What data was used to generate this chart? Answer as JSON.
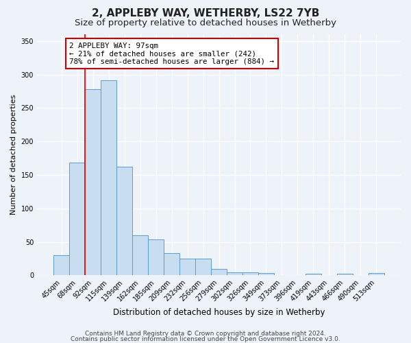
{
  "title": "2, APPLEBY WAY, WETHERBY, LS22 7YB",
  "subtitle": "Size of property relative to detached houses in Wetherby",
  "xlabel": "Distribution of detached houses by size in Wetherby",
  "ylabel": "Number of detached properties",
  "bar_labels": [
    "45sqm",
    "68sqm",
    "92sqm",
    "115sqm",
    "139sqm",
    "162sqm",
    "185sqm",
    "209sqm",
    "232sqm",
    "256sqm",
    "279sqm",
    "302sqm",
    "326sqm",
    "349sqm",
    "373sqm",
    "396sqm",
    "419sqm",
    "443sqm",
    "466sqm",
    "490sqm",
    "513sqm"
  ],
  "bar_heights": [
    30,
    168,
    278,
    291,
    162,
    60,
    54,
    33,
    25,
    25,
    10,
    5,
    5,
    3,
    0,
    0,
    2,
    0,
    2,
    0,
    3
  ],
  "bar_color": "#c9ddf0",
  "bar_edge_color": "#5b9bd5",
  "red_line_index": 2,
  "ylim": [
    0,
    360
  ],
  "yticks": [
    0,
    50,
    100,
    150,
    200,
    250,
    300,
    350
  ],
  "annotation_title": "2 APPLEBY WAY: 97sqm",
  "annotation_line1": "← 21% of detached houses are smaller (242)",
  "annotation_line2": "78% of semi-detached houses are larger (884) →",
  "annotation_box_color": "#ffffff",
  "annotation_box_edge": "#cc0000",
  "footnote1": "Contains HM Land Registry data © Crown copyright and database right 2024.",
  "footnote2": "Contains public sector information licensed under the Open Government Licence v3.0.",
  "background_color": "#eef2f9",
  "plot_background": "#eef2f9",
  "grid_color": "#ffffff",
  "title_fontsize": 11,
  "subtitle_fontsize": 9.5,
  "xlabel_fontsize": 8.5,
  "ylabel_fontsize": 8,
  "tick_fontsize": 7,
  "annotation_fontsize": 7.8,
  "footnote_fontsize": 6.5
}
